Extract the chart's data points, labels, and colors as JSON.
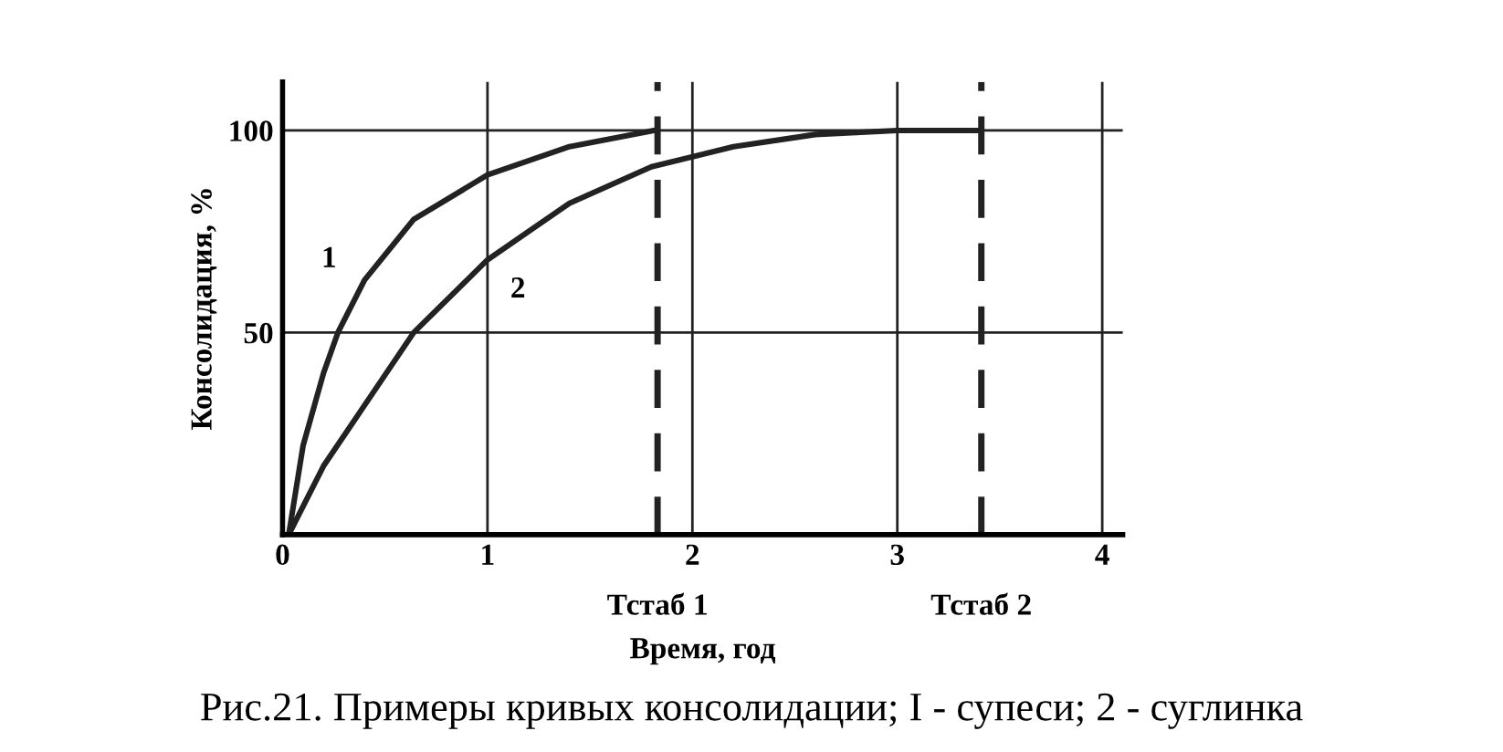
{
  "chart_data": {
    "type": "line",
    "xlabel": "Время, год",
    "ylabel": "Консолидация, %",
    "annotations": [
      "Рис.21. Примеры кривых консолидации; I - супеси; 2 - суглинка"
    ],
    "series": [
      {
        "name": "1",
        "color": "#222222",
        "x": [
          0.03,
          0.1,
          0.2,
          0.27,
          0.4,
          0.64,
          1,
          1.4,
          1.81
        ],
        "values": [
          0,
          22,
          40,
          50,
          63,
          78,
          89,
          96,
          100
        ]
      },
      {
        "name": "2",
        "color": "#222222",
        "x": [
          0.03,
          0.2,
          0.4,
          0.64,
          1,
          1.4,
          1.8,
          2.2,
          2.6,
          3.0,
          3.4
        ],
        "values": [
          0,
          17,
          32,
          50,
          68,
          82,
          91,
          96,
          99,
          100,
          100
        ]
      }
    ],
    "xlim": [
      0,
      4.1
    ],
    "ylim": [
      0,
      112
    ],
    "xticks": [
      0,
      1,
      2,
      3,
      4
    ],
    "yticks": [
      50,
      100
    ],
    "ref_lines": [
      {
        "axis": "x",
        "value": 1.83,
        "label": "Тстаб 1",
        "color": "#222222",
        "line_style": "dashed"
      },
      {
        "axis": "x",
        "value": 3.41,
        "label": "Тстаб 2",
        "color": "#222222",
        "line_style": "dashed"
      }
    ],
    "grid": true,
    "legend": false,
    "marker": "none",
    "line_style": "solid"
  }
}
